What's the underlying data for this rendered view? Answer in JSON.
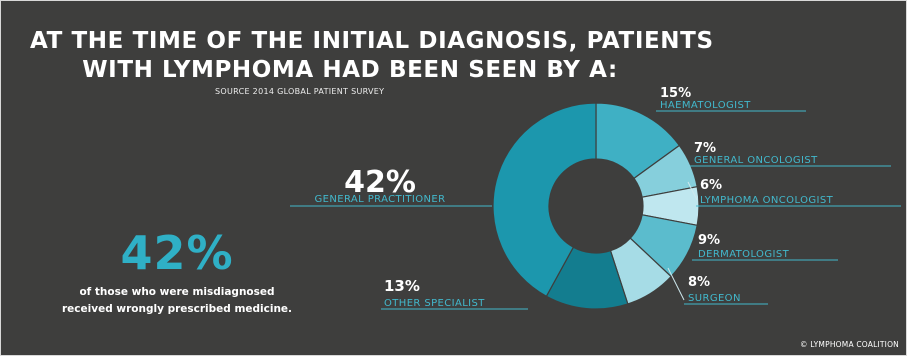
{
  "title": {
    "line1": "AT THE TIME OF THE INITIAL DIAGNOSIS, PATIENTS",
    "line2": "WITH LYMPHOMA HAD BEEN SEEN BY A:"
  },
  "source": "SOURCE 2014 GLOBAL PATIENT SURVEY",
  "hero": {
    "value": "42%",
    "line1": "of those who were misdiagnosed",
    "line2": "received wrongly prescribed medicine."
  },
  "footer": "© LYMPHOMA COALITION",
  "colors": {
    "background": "#3e3e3d",
    "hero": "#2fb0c6",
    "label": "#42b8cc"
  },
  "chart_data": {
    "type": "pie",
    "variant": "donut",
    "unit": "%",
    "slices": [
      {
        "label": "HAEMATOLOGIST",
        "value": 15,
        "display": "15%",
        "color": "#3fb0c4"
      },
      {
        "label": "GENERAL ONCOLOGIST",
        "value": 7,
        "display": "7%",
        "color": "#86cfdc"
      },
      {
        "label": "LYMPHOMA ONCOLOGIST",
        "value": 6,
        "display": "6%",
        "color": "#bfe7ef"
      },
      {
        "label": "DERMATOLOGIST",
        "value": 9,
        "display": "9%",
        "color": "#5bbccd"
      },
      {
        "label": "SURGEON",
        "value": 8,
        "display": "8%",
        "color": "#a6dce6"
      },
      {
        "label": "OTHER SPECIALIST",
        "value": 13,
        "display": "13%",
        "color": "#137d8f"
      },
      {
        "label": "GENERAL PRACTITIONER",
        "value": 42,
        "display": "42%",
        "color": "#1c97ad"
      }
    ]
  }
}
